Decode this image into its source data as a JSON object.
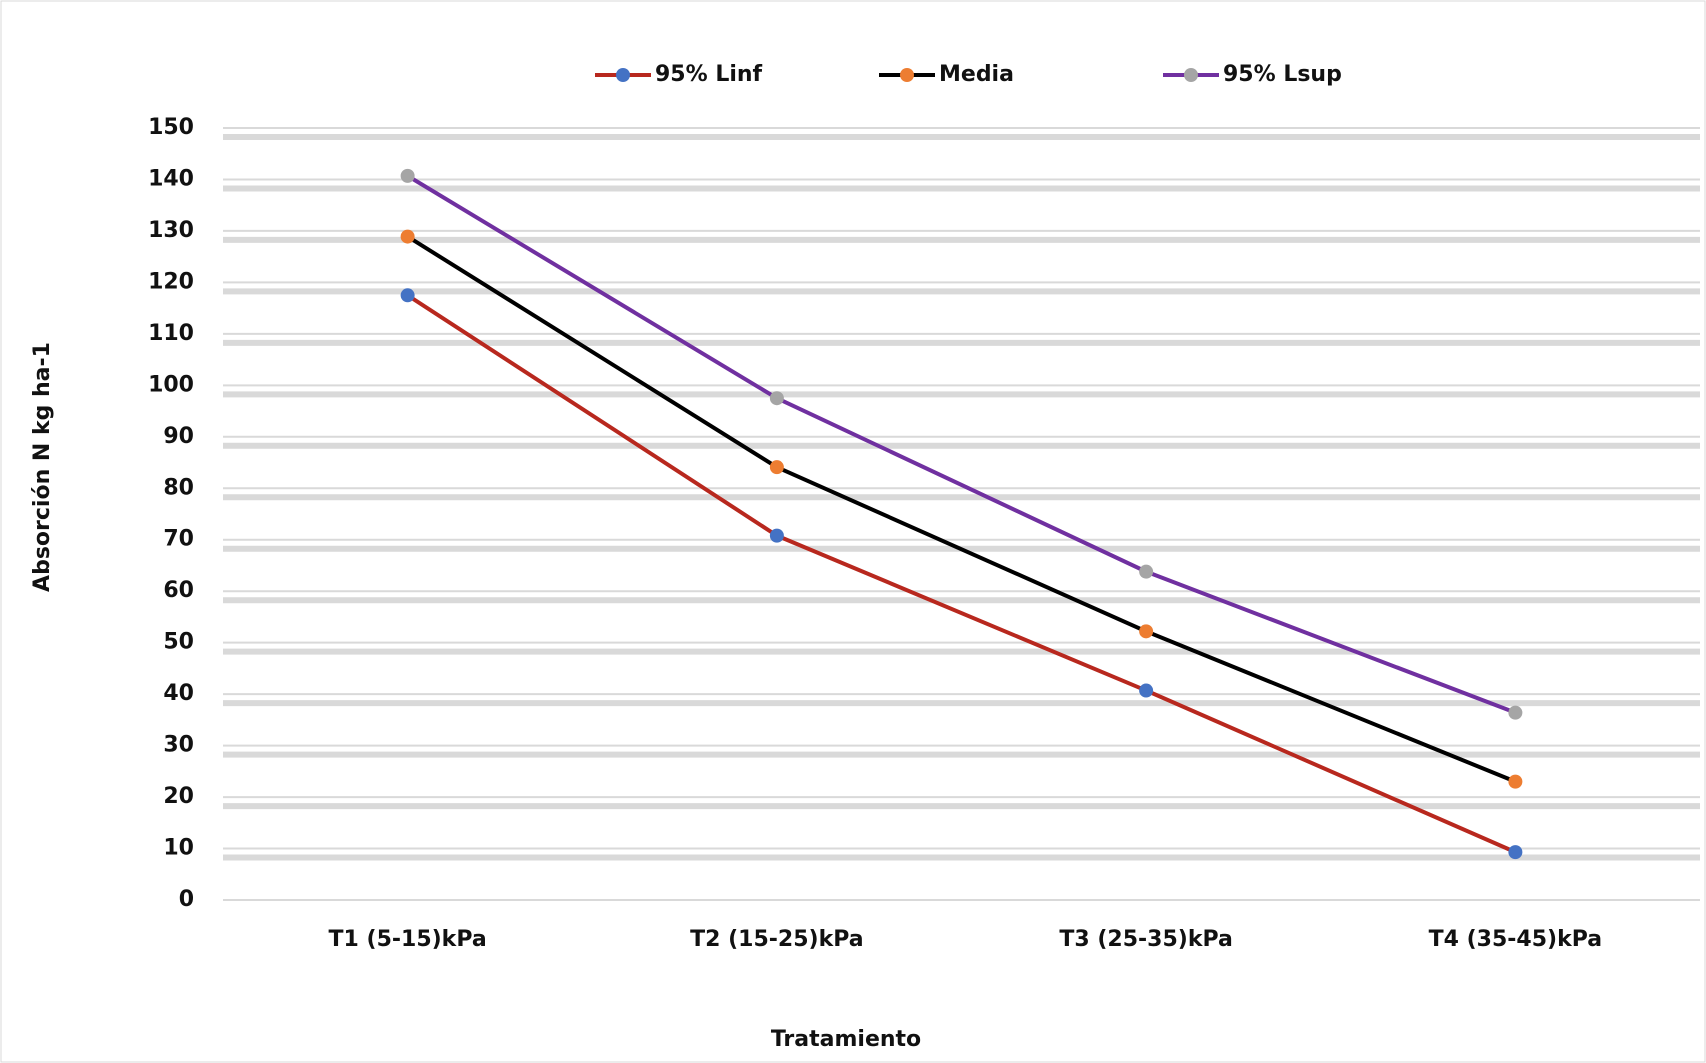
{
  "chart_data": {
    "type": "line",
    "categories": [
      "T1 (5-15)kPa",
      "T2 (15-25)kPa",
      "T3 (25-35)kPa",
      "T4 (35-45)kPa"
    ],
    "series": [
      {
        "name": "95% Linf",
        "color": "#b8281e",
        "marker_color": "#4472c4",
        "values": [
          117.5,
          70.8,
          40.7,
          9.3
        ]
      },
      {
        "name": "Media",
        "color": "#000000",
        "marker_color": "#ed7d31",
        "values": [
          128.9,
          84.1,
          52.2,
          23.0
        ]
      },
      {
        "name": "95% Lsup",
        "color": "#7030a0",
        "marker_color": "#a5a5a5",
        "values": [
          140.7,
          97.5,
          63.8,
          36.4
        ]
      }
    ],
    "xlabel": "Tratamiento",
    "ylabel": "Absorción N kg ha-1",
    "ylim": [
      0,
      150
    ],
    "yticks": [
      0,
      10,
      20,
      30,
      40,
      50,
      60,
      70,
      80,
      90,
      100,
      110,
      120,
      130,
      140,
      150
    ],
    "grid": true,
    "legend": "top"
  }
}
